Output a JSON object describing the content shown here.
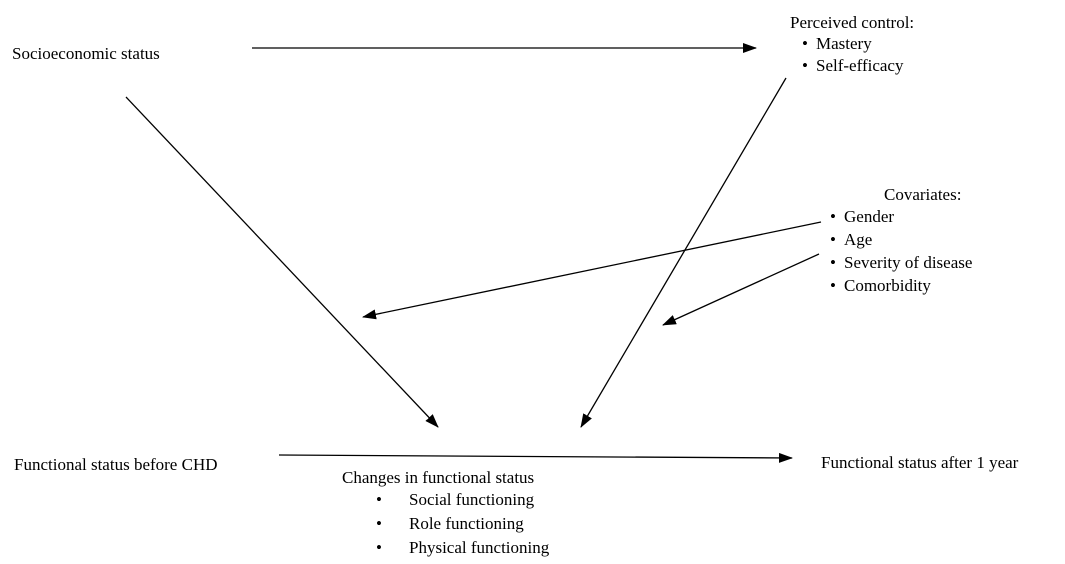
{
  "diagram": {
    "socioeconomic_status": "Socioeconomic status",
    "perceived_control": {
      "heading": "Perceived control:",
      "items": [
        "Mastery",
        "Self-efficacy"
      ]
    },
    "covariates": {
      "heading": "Covariates:",
      "items": [
        "Gender",
        "Age",
        "Severity of disease",
        "Comorbidity"
      ]
    },
    "functional_status_before": "Functional status before CHD",
    "functional_status_after": "Functional status after 1 year",
    "changes": {
      "heading": "Changes in functional status",
      "items": [
        "Social functioning",
        "Role functioning",
        "Physical functioning"
      ]
    },
    "bullet": "•",
    "colors": {
      "text": "#000000",
      "arrow": "#000000",
      "background": "#ffffff"
    }
  }
}
